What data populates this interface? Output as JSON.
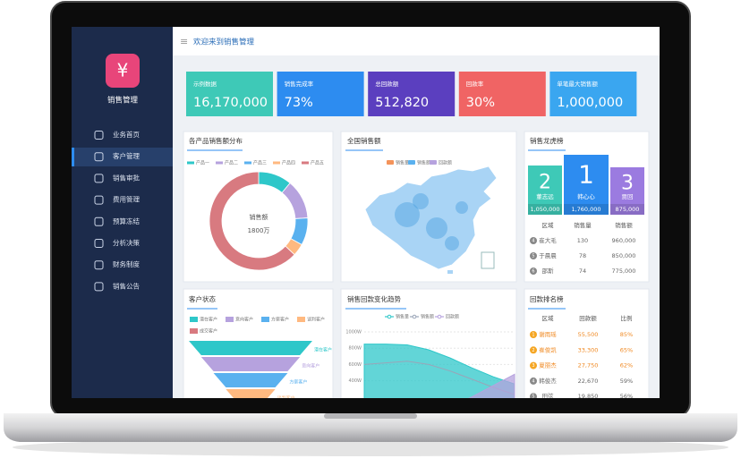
{
  "sidebar": {
    "logo": "¥",
    "title": "销售管理",
    "menu": [
      "业务首页",
      "客户管理",
      "销售审批",
      "费用管理",
      "预算冻结",
      "分析决策",
      "财务制度",
      "销售公告"
    ]
  },
  "header": {
    "title": "欢迎来到销售管理"
  },
  "kpis": [
    {
      "label": "示例数据",
      "value": "16,170,000",
      "color": "#3ec9b7"
    },
    {
      "label": "销售完成率",
      "value": "73%",
      "color": "#2d8cf0"
    },
    {
      "label": "总回款额",
      "value": "512,820",
      "color": "#5b3fbf"
    },
    {
      "label": "回款率",
      "value": "30%",
      "color": "#f06464"
    },
    {
      "label": "单笔最大销售额",
      "value": "1,000,000",
      "color": "#3aa6f0"
    }
  ],
  "product_share": {
    "type": "pie",
    "title": "各产品销售额分布",
    "categories": [
      "产品一",
      "产品二",
      "产品三",
      "产品四",
      "产品五"
    ],
    "values": [
      11,
      13,
      9,
      4,
      63
    ],
    "colors": [
      "#2ec7c9",
      "#b6a2de",
      "#5ab1ef",
      "#ffb980",
      "#d87a80"
    ],
    "center_label": "销售额",
    "center_value": "1800万"
  },
  "map_panel": {
    "title": "全国销售额",
    "legend": [
      "销售量",
      "销售额",
      "回款额"
    ],
    "legend_colors": [
      "#f4935a",
      "#5ab1ef",
      "#b6a2de"
    ]
  },
  "ranking": {
    "title": "销售龙虎榜",
    "podium": [
      {
        "rank": "2",
        "name": "董志远",
        "amount": "1,050,000",
        "color": "#3ec9b7"
      },
      {
        "rank": "1",
        "name": "韩心心",
        "amount": "1,760,000",
        "color": "#2d8cf0"
      },
      {
        "rank": "3",
        "name": "贾回",
        "amount": "875,000",
        "color": "#9b7be0"
      }
    ],
    "columns": [
      "区域",
      "销售量",
      "销售额"
    ],
    "rows": [
      [
        "4",
        "崔大毛",
        "130",
        "960,000"
      ],
      [
        "5",
        "于晨晨",
        "78",
        "850,000"
      ],
      [
        "6",
        "邵斯",
        "74",
        "775,000"
      ]
    ]
  },
  "funnel": {
    "type": "funnel",
    "title": "客户状态",
    "categories": [
      "潜在客户",
      "意向客户",
      "方案客户",
      "谈判客户",
      "成交客户"
    ],
    "values": [
      100,
      80,
      60,
      40,
      20
    ],
    "colors": [
      "#2ec7c9",
      "#b6a2de",
      "#5ab1ef",
      "#ffb980",
      "#d87a80"
    ]
  },
  "trend": {
    "type": "area",
    "title": "销售回款变化趋势",
    "ylim": [
      0,
      1000
    ],
    "yticks": [
      {
        "value": 1000,
        "label": "1000W"
      },
      {
        "value": 800,
        "label": "800W"
      },
      {
        "value": 600,
        "label": "600W"
      },
      {
        "value": 400,
        "label": "400W"
      }
    ],
    "series": [
      {
        "name": "销售量",
        "color": "#2ec7c9",
        "values": [
          850,
          850,
          840,
          780,
          680,
          560,
          450,
          360
        ]
      },
      {
        "name": "销售额",
        "color": "#9aa5b8",
        "values": [
          600,
          620,
          640,
          600,
          520,
          420,
          320,
          230
        ]
      },
      {
        "name": "回款额",
        "color": "#b6a2de",
        "values": [
          0,
          0,
          0,
          20,
          80,
          200,
          340,
          480
        ]
      }
    ]
  },
  "payback": {
    "title": "回款排名榜",
    "columns": [
      "区域",
      "回款额",
      "比例"
    ],
    "rows": [
      [
        "1",
        "谢雨瑶",
        "55,500",
        "85%"
      ],
      [
        "2",
        "崔俊凯",
        "33,300",
        "65%"
      ],
      [
        "3",
        "夏丽杰",
        "27,750",
        "62%"
      ],
      [
        "4",
        "韩俊杰",
        "22,670",
        "59%"
      ],
      [
        "5",
        "田弦",
        "19,850",
        "56%"
      ]
    ]
  }
}
